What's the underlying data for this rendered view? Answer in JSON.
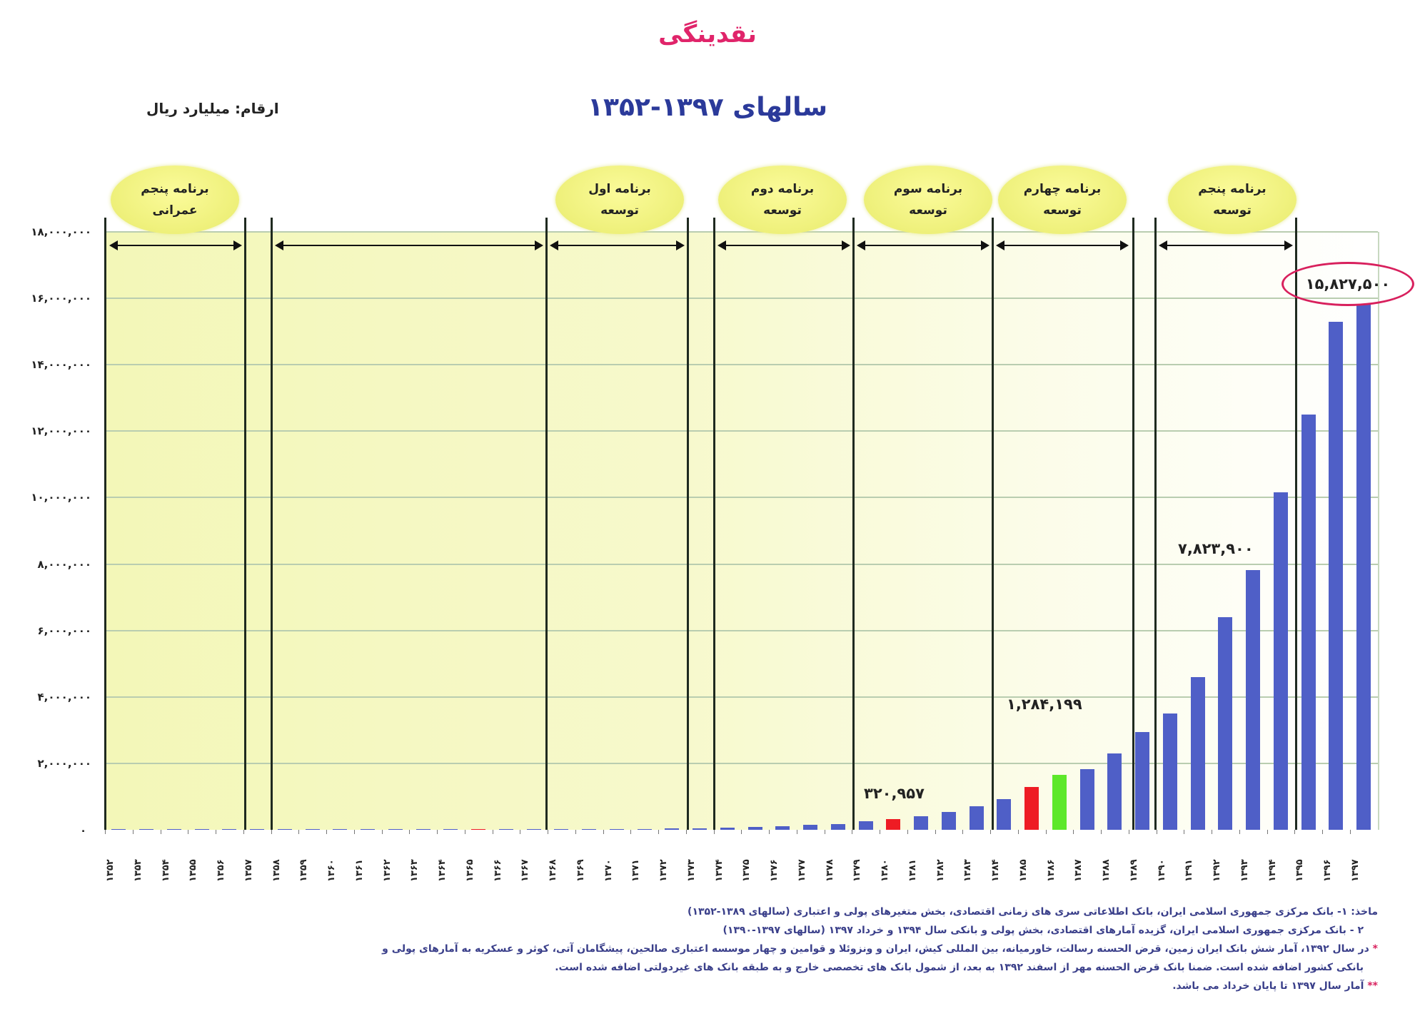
{
  "header": {
    "title": "نقدینگی",
    "subtitle": "سالهای ۱۳۹۷-۱۳۵۲",
    "units": "ارقام: میلیارد ریال"
  },
  "colors": {
    "title": "#e0246a",
    "subtitle": "#2b3a9a",
    "bar_default": "#4f5fc7",
    "bar_red": "#ee1c24",
    "bar_green": "#5de82a",
    "highlight_circle": "#d8205d",
    "plot_background": "#f5f8c4",
    "bubble": "#f2f37e"
  },
  "y_axis": {
    "ticks": [
      "۱۸,۰۰۰,۰۰۰",
      "۱۶,۰۰۰,۰۰۰",
      "۱۴,۰۰۰,۰۰۰",
      "۱۲,۰۰۰,۰۰۰",
      "۱۰,۰۰۰,۰۰۰",
      "۸,۰۰۰,۰۰۰",
      "۶,۰۰۰,۰۰۰",
      "۴,۰۰۰,۰۰۰",
      "۲,۰۰۰,۰۰۰"
    ],
    "zero": "۰"
  },
  "programs": [
    {
      "line1": "برنامه پنجم",
      "line2": "عمرانی"
    },
    {
      "line1": "برنامه اول",
      "line2": "توسعه"
    },
    {
      "line1": "برنامه دوم",
      "line2": "توسعه"
    },
    {
      "line1": "برنامه سوم",
      "line2": "توسعه"
    },
    {
      "line1": "برنامه چهارم",
      "line2": "توسعه"
    },
    {
      "line1": "برنامه پنجم",
      "line2": "توسعه"
    }
  ],
  "data_labels": {
    "y1380": "۳۲۰,۹۵۷",
    "y1385": "۱,۲۸۴,۱۹۹",
    "y1393": "۷,۸۲۳,۹۰۰",
    "y1397": "۱۵,۸۲۷,۵۰۰"
  },
  "notes": {
    "source1": "ماخذ: ۱- بانک مرکزی جمهوری اسلامی ایران، بانک اطلاعاتی سری های زمانی اقتصادی، بخش متغیرهای پولی و اعتباری (سالهای ۱۳۸۹-۱۳۵۲)",
    "source2": "۲ - بانک مرکزی جمهوری اسلامی ایران، گزیده آمارهای اقتصادی، بخش پولی و بانکی سال ۱۳۹۴ و خرداد ۱۳۹۷ (سالهای ۱۳۹۷-۱۳۹۰)",
    "star1_mark": "*",
    "star1_line1": "در سال ۱۳۹۲، آمار شش بانک ایران زمین، قرض الحسنه رسالت، خاورمیانه، بین المللی کیش، ایران و ونزوئلا و قوامین و چهار موسسه اعتباری صالحین، پیشگامان آتی، کوثر و عسکریه به آمارهای پولی و",
    "star1_line2": "بانکی کشور اضافه شده است. ضمنا بانک قرض الحسنه مهر از اسفند ۱۳۹۲ به بعد، از شمول بانک های تخصصی خارج و به طبقه بانک های غیردولتی اضافه شده است.",
    "star2_mark": "**",
    "star2_text": "آمار سال ۱۳۹۷ تا پایان خرداد می باشد."
  },
  "chart_data": {
    "type": "bar",
    "title": "نقدینگی",
    "subtitle": "سالهای ۱۳۹۷-۱۳۵۲",
    "xlabel": "",
    "ylabel": "ارقام: میلیارد ریال",
    "ylim": [
      0,
      18000000
    ],
    "y_ticks": [
      0,
      2000000,
      4000000,
      6000000,
      8000000,
      10000000,
      12000000,
      14000000,
      16000000,
      18000000
    ],
    "grid": true,
    "legend": "none",
    "categories": [
      "۱۳۵۲",
      "۱۳۵۳",
      "۱۳۵۴",
      "۱۳۵۵",
      "۱۳۵۶",
      "۱۳۵۷",
      "۱۳۵۸",
      "۱۳۵۹",
      "۱۳۶۰",
      "۱۳۶۱",
      "۱۳۶۲",
      "۱۳۶۳",
      "۱۳۶۴",
      "۱۳۶۵",
      "۱۳۶۶",
      "۱۳۶۷",
      "۱۳۶۸",
      "۱۳۶۹",
      "۱۳۷۰",
      "۱۳۷۱",
      "۱۳۷۲",
      "۱۳۷۳",
      "۱۳۷۴",
      "۱۳۷۵",
      "۱۳۷۶",
      "۱۳۷۷",
      "۱۳۷۸",
      "۱۳۷۹",
      "۱۳۸۰",
      "۱۳۸۱",
      "۱۳۸۲",
      "۱۳۸۳",
      "۱۳۸۴",
      "۱۳۸۵",
      "۱۳۸۶",
      "۱۳۸۷",
      "۱۳۸۸",
      "۱۳۸۹",
      "۱۳۹۰",
      "۱۳۹۱",
      "۱۳۹۲",
      "۱۳۹۳",
      "۱۳۹۴",
      "۱۳۹۵",
      "۱۳۹۶",
      "۱۳۹۷"
    ],
    "years": [
      1352,
      1353,
      1354,
      1355,
      1356,
      1357,
      1358,
      1359,
      1360,
      1361,
      1362,
      1363,
      1364,
      1365,
      1366,
      1367,
      1368,
      1369,
      1370,
      1371,
      1372,
      1373,
      1374,
      1375,
      1376,
      1377,
      1378,
      1379,
      1380,
      1381,
      1382,
      1383,
      1384,
      1385,
      1386,
      1387,
      1388,
      1389,
      1390,
      1391,
      1392,
      1393,
      1394,
      1395,
      1396,
      1397
    ],
    "values": [
      500,
      700,
      1000,
      1400,
      1800,
      2400,
      3000,
      3500,
      4200,
      5000,
      5800,
      6200,
      7000,
      8300,
      9800,
      11500,
      14000,
      17500,
      23000,
      29000,
      38000,
      52000,
      68000,
      91000,
      118000,
      143000,
      182000,
      249000,
      320957,
      410000,
      540000,
      700000,
      918000,
      1284199,
      1650000,
      1830000,
      2300000,
      2950000,
      3500000,
      4600000,
      6400000,
      7823900,
      10150000,
      12500000,
      15300000,
      15827500
    ],
    "bar_colors": {
      "1365": "red",
      "1380": "red",
      "1385": "red",
      "1386": "green",
      "default": "blue"
    },
    "annotations": [
      {
        "year": 1380,
        "text": "۳۲۰,۹۵۷"
      },
      {
        "year": 1385,
        "text": "۱,۲۸۴,۱۹۹"
      },
      {
        "year": 1393,
        "text": "۷,۸۲۳,۹۰۰"
      },
      {
        "year": 1397,
        "text": "۱۵,۸۲۷,۵۰۰",
        "highlighted": true
      }
    ],
    "plan_periods": [
      {
        "label": "برنامه پنجم عمرانی",
        "from": 1352,
        "to": 1356
      },
      {
        "label": "",
        "from": 1358,
        "to": 1367
      },
      {
        "label": "برنامه اول توسعه",
        "from": 1368,
        "to": 1372
      },
      {
        "label": "برنامه دوم توسعه",
        "from": 1374,
        "to": 1378
      },
      {
        "label": "برنامه سوم توسعه",
        "from": 1379,
        "to": 1383
      },
      {
        "label": "برنامه چهارم توسعه",
        "from": 1384,
        "to": 1388
      },
      {
        "label": "برنامه پنجم توسعه",
        "from": 1390,
        "to": 1394
      }
    ]
  }
}
